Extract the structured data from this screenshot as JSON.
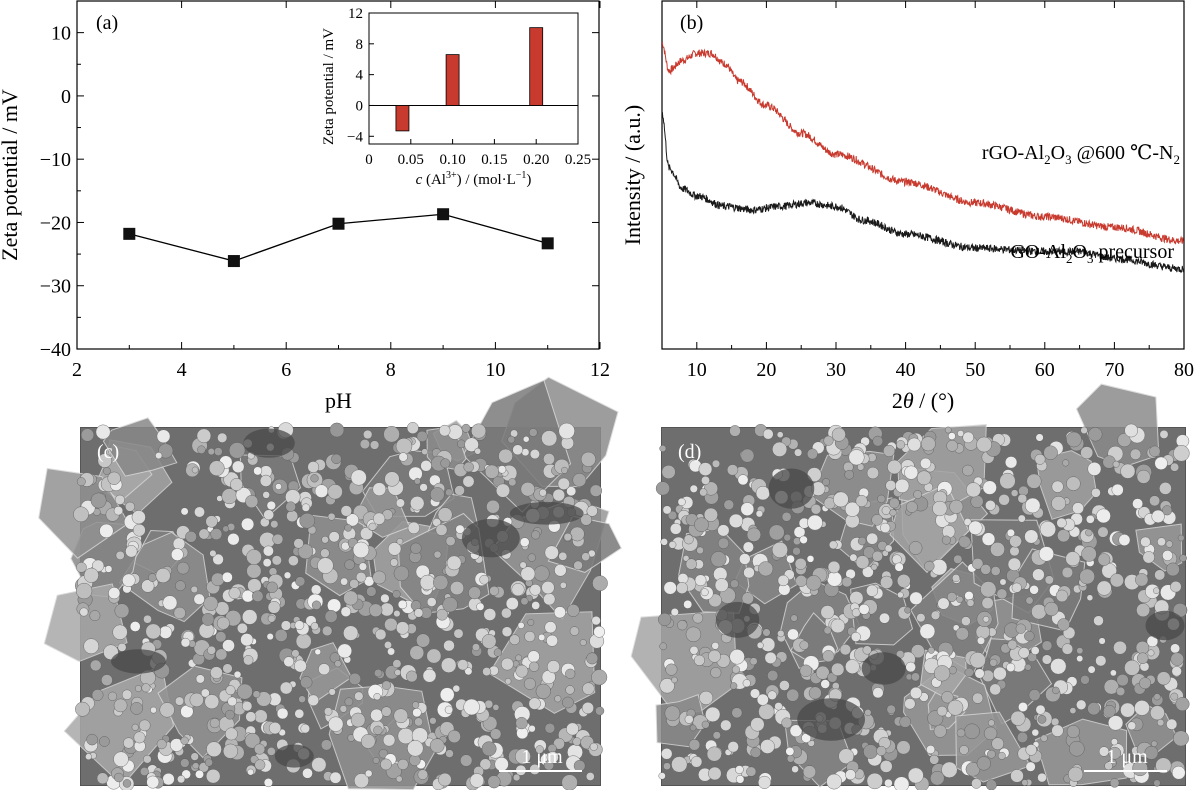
{
  "chart_data": [
    {
      "panel": "(a)",
      "type": "line",
      "xlabel": "pH",
      "ylabel": "Zeta potential / mV",
      "xlim": [
        2,
        12
      ],
      "ylim": [
        -40,
        15
      ],
      "xticks": [
        2,
        4,
        6,
        8,
        10,
        12
      ],
      "yticks": [
        -40,
        -30,
        -20,
        -10,
        0,
        10
      ],
      "series": [
        {
          "x": [
            3,
            5,
            7,
            9,
            11
          ],
          "y": [
            -21.8,
            -26.1,
            -20.2,
            -18.7,
            -23.3
          ]
        }
      ]
    },
    {
      "panel": "inset",
      "type": "bar",
      "xlabel_c": "c",
      "xlabel_mid": " (Al",
      "xlabel_sup": "3+",
      "xlabel_rest": ") / (mol·L",
      "xlabel_sup2": "−1",
      "xlabel_end": ")",
      "ylabel": "Zeta potential / mV",
      "xlim": [
        0,
        0.25
      ],
      "ylim": [
        -5,
        12
      ],
      "xticks": [
        "0",
        "0.05",
        "0.10",
        "0.15",
        "0.20",
        "0.25"
      ],
      "yticks": [
        "−4",
        "0",
        "4",
        "8",
        "12"
      ],
      "bar_color": "#c83a2e",
      "x": [
        0.04,
        0.1,
        0.2
      ],
      "values": [
        -3.3,
        6.6,
        10.1
      ]
    },
    {
      "panel": "(b)",
      "type": "line",
      "xlabel_pre": "2",
      "xlabel_theta": "θ",
      "xlabel_post": " / (°)",
      "ylabel": "Intensity / (a.u.)",
      "xlim": [
        5,
        80
      ],
      "xticks": [
        "10",
        "20",
        "30",
        "40",
        "50",
        "60",
        "70",
        "80"
      ],
      "series": [
        {
          "color": "#c83a2e",
          "label_parts": [
            "rGO-Al",
            "2",
            "O",
            "3",
            " @600 ℃-N",
            "2"
          ],
          "profile_x": [
            5,
            6,
            8,
            10,
            12,
            14,
            16,
            20,
            25,
            30,
            40,
            50,
            60,
            70,
            80
          ],
          "profile_y": [
            0.88,
            0.8,
            0.83,
            0.85,
            0.85,
            0.82,
            0.77,
            0.7,
            0.62,
            0.56,
            0.48,
            0.42,
            0.38,
            0.35,
            0.31
          ]
        },
        {
          "color": "#1a1a1a",
          "label_parts": [
            "GO-Al",
            "2",
            "O",
            "3",
            " precursor"
          ],
          "profile_x": [
            5,
            6,
            8,
            10,
            14,
            18,
            22,
            26,
            30,
            34,
            40,
            50,
            60,
            65,
            70,
            80
          ],
          "profile_y": [
            0.68,
            0.52,
            0.46,
            0.44,
            0.41,
            0.4,
            0.41,
            0.42,
            0.41,
            0.37,
            0.33,
            0.29,
            0.28,
            0.28,
            0.26,
            0.23
          ]
        }
      ]
    }
  ],
  "images": [
    {
      "panel": "(c)",
      "scale_bar": "1 μm"
    },
    {
      "panel": "(d)",
      "scale_bar": "1 μm"
    }
  ]
}
